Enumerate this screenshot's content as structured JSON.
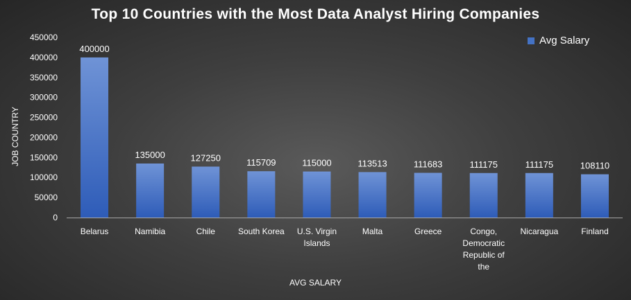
{
  "chart_data": {
    "type": "bar",
    "title": "Top 10 Countries with the Most Data Analyst Hiring Companies",
    "xlabel": "AVG SALARY",
    "ylabel": "JOB COUNTRY",
    "ylim": [
      0,
      450000
    ],
    "yticks": [
      0,
      50000,
      100000,
      150000,
      200000,
      250000,
      300000,
      350000,
      400000,
      450000
    ],
    "grid": false,
    "legend_position": "top-right",
    "categories": [
      [
        "Belarus"
      ],
      [
        "Namibia"
      ],
      [
        "Chile"
      ],
      [
        "South Korea"
      ],
      [
        "U.S. Virgin",
        "Islands"
      ],
      [
        "Malta"
      ],
      [
        "Greece"
      ],
      [
        "Congo,",
        "Democratic",
        "Republic of",
        "the"
      ],
      [
        "Nicaragua"
      ],
      [
        "Finland"
      ]
    ],
    "series": [
      {
        "name": "Avg Salary",
        "color": "#4472c4",
        "values": [
          400000,
          135000,
          127250,
          115709,
          115000,
          113513,
          111683,
          111175,
          111175,
          108110
        ]
      }
    ]
  }
}
